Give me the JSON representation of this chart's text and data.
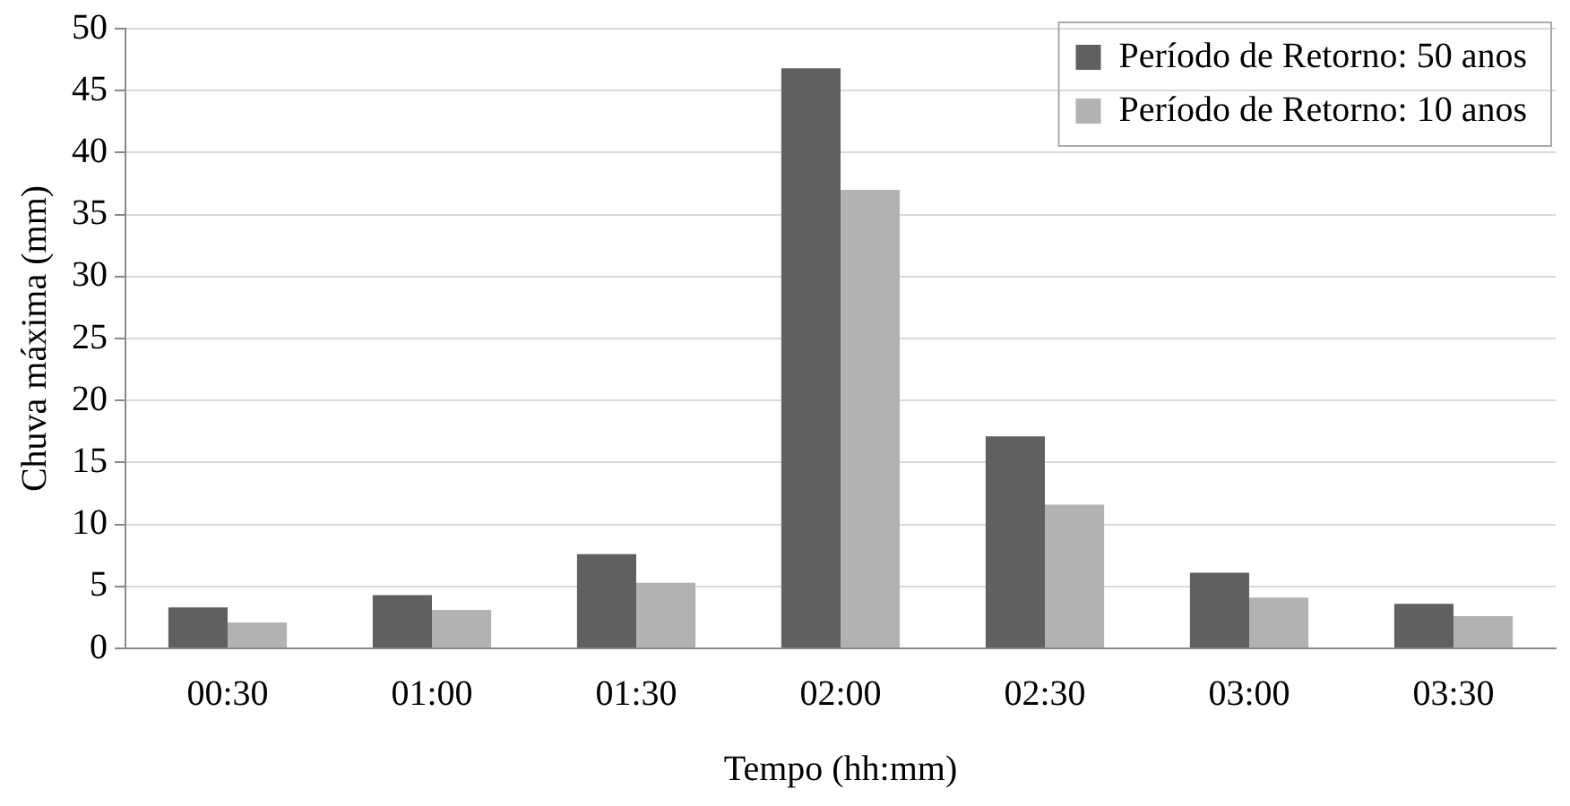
{
  "chart_data": {
    "type": "bar",
    "xlabel": "Tempo (hh:mm)",
    "ylabel": "Chuva máxima (mm)",
    "categories": [
      "00:30",
      "01:00",
      "01:30",
      "02:00",
      "02:30",
      "03:00",
      "03:30"
    ],
    "series": [
      {
        "name": "Período de Retorno: 50 anos",
        "color": "#606060",
        "values": [
          3.3,
          4.3,
          7.6,
          46.8,
          17.1,
          6.1,
          3.6
        ]
      },
      {
        "name": "Período de Retorno: 10 anos",
        "color": "#b2b2b2",
        "values": [
          2.1,
          3.1,
          5.3,
          37.0,
          11.6,
          4.1,
          2.6
        ]
      }
    ],
    "ylim": [
      0,
      50
    ],
    "yticks": [
      0,
      5,
      10,
      15,
      20,
      25,
      30,
      35,
      40,
      45,
      50
    ],
    "grid": "y",
    "legend": "top right"
  }
}
